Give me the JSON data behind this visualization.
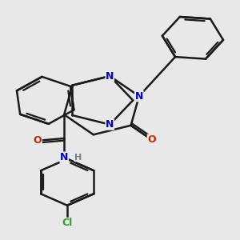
{
  "bg_color": "#e8e8e8",
  "bond_color": "#1a1a1a",
  "bond_width": 1.8,
  "atom_colors": {
    "N": "#0000cc",
    "O": "#cc2200",
    "Cl": "#2ca02c",
    "H": "#708090"
  },
  "font_size": 9
}
